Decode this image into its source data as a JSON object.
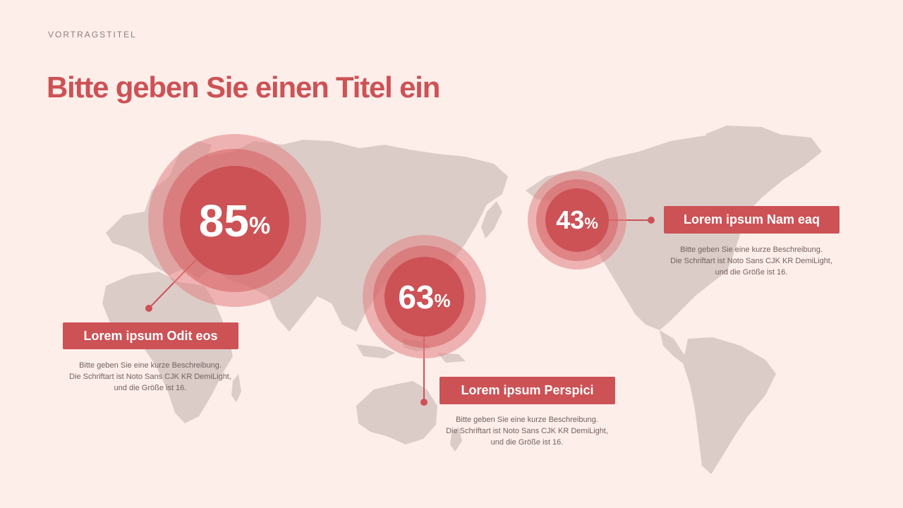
{
  "header": {
    "kicker": "VORTRAGSTITEL",
    "title": "Bitte geben Sie einen Titel ein"
  },
  "colors": {
    "background": "#fdeeea",
    "accent": "#cc5256",
    "map": "#dcccc8",
    "ring_outer": "#e8a3a3",
    "ring_mid": "#de8a8c"
  },
  "stats": [
    {
      "value": "85",
      "unit": "%",
      "label": "Lorem ipsum Odit eos",
      "desc_lines": [
        "Bitte geben Sie eine kurze Beschreibung.",
        "Die Schriftart ist Noto Sans CJK KR DemiLight,",
        "und die Größe ist 16."
      ]
    },
    {
      "value": "63",
      "unit": "%",
      "label": "Lorem ipsum Perspici",
      "desc_lines": [
        "Bitte geben Sie eine kurze Beschreibung.",
        "Die Schriftart ist Noto Sans CJK KR DemiLight,",
        "und die Größe ist 16."
      ]
    },
    {
      "value": "43",
      "unit": "%",
      "label": "Lorem ipsum Nam eaq",
      "desc_lines": [
        "Bitte geben Sie eine kurze Beschreibung.",
        "Die Schriftart ist Noto Sans CJK KR DemiLight,",
        "und die Größe ist 16."
      ]
    }
  ]
}
